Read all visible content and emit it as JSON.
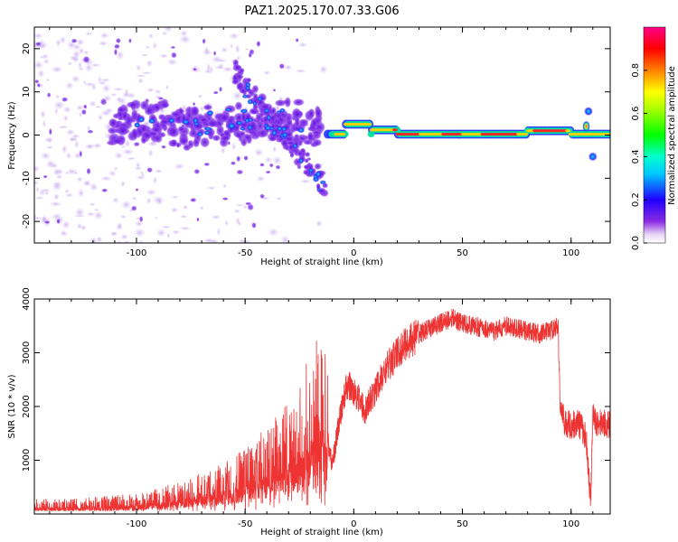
{
  "figure_title": "PAZ1.2025.170.07.33.G06",
  "colors": {
    "snr_line": "#ee3333",
    "frame": "#000000",
    "background": "#ffffff"
  },
  "chart_data": [
    {
      "type": "heatmap",
      "title": "",
      "xlabel": "Height of straight line (km)",
      "ylabel": "Frequency (Hz)",
      "xlim": [
        -147,
        118
      ],
      "ylim": [
        -25,
        25
      ],
      "x_ticks": [
        -100,
        -50,
        0,
        50,
        100
      ],
      "y_ticks": [
        -20,
        -10,
        0,
        10,
        20
      ],
      "grid": false,
      "colormap": "rainbow (white-violet-blue-cyan-green-yellow-red-magenta)",
      "description_of_features": [
        {
          "x_range": [
            -12,
            118
          ],
          "frequency_hz": 0.5,
          "amplitude": "high (0.7-0.9)",
          "shape": "narrow band near 0 Hz, slight bump to +3 Hz near x=2"
        },
        {
          "x_range": [
            -110,
            -15
          ],
          "frequency_hz": 2,
          "amplitude": "low to mid (0.1-0.5)",
          "shape": "scattered band around 0 to +5 Hz"
        },
        {
          "x_range": [
            -55,
            -15
          ],
          "frequency_hz": -5,
          "amplitude": "mid (0.2-0.4)",
          "shape": "diagonal streak descending from +15 Hz to -12 Hz"
        },
        {
          "x_range": [
            -147,
            -100
          ],
          "frequency_hz": 0,
          "amplitude": "low (0.05-0.2)",
          "shape": "diffuse noise across full band"
        },
        {
          "x_range": [
            105,
            112
          ],
          "frequency_hz": -5,
          "amplitude": "mid",
          "shape": "side lobes at +5 and -5 Hz"
        }
      ],
      "colorbar": {
        "label": "Normalized spectral amplitude",
        "range": [
          0,
          1
        ],
        "ticks": [
          0.0,
          0.2,
          0.4,
          0.6,
          0.8
        ]
      }
    },
    {
      "type": "line",
      "title": "",
      "xlabel": "Height of straight line (km)",
      "ylabel": "SNR (10 * v/v)",
      "xlim": [
        -147,
        118
      ],
      "ylim": [
        0,
        4000
      ],
      "x_ticks": [
        -100,
        -50,
        0,
        50,
        100
      ],
      "y_ticks": [
        1000,
        2000,
        3000,
        4000
      ],
      "grid": false,
      "series": [
        {
          "x": [
            -147,
            -130,
            -110,
            -100,
            -90,
            -80,
            -70,
            -60,
            -50,
            -40,
            -30,
            -25,
            -20,
            -17,
            -15,
            -12,
            -10,
            -8,
            -5,
            -3,
            0,
            3,
            5,
            10,
            15,
            20,
            25,
            30,
            35,
            40,
            45,
            50,
            55,
            60,
            65,
            70,
            75,
            80,
            85,
            90,
            94,
            95,
            97,
            100,
            103,
            105,
            107,
            108,
            109,
            110,
            112,
            115,
            118
          ],
          "y": [
            150,
            150,
            180,
            200,
            250,
            320,
            400,
            500,
            650,
            850,
            1100,
            1300,
            1600,
            1800,
            1900,
            1400,
            900,
            1400,
            2100,
            2400,
            2300,
            2100,
            1900,
            2300,
            2700,
            3000,
            3200,
            3350,
            3450,
            3550,
            3650,
            3550,
            3500,
            3450,
            3400,
            3500,
            3450,
            3400,
            3350,
            3400,
            3500,
            2000,
            1700,
            1650,
            1700,
            1600,
            1400,
            800,
            200,
            1800,
            1700,
            1700,
            1650
          ]
        }
      ]
    }
  ]
}
